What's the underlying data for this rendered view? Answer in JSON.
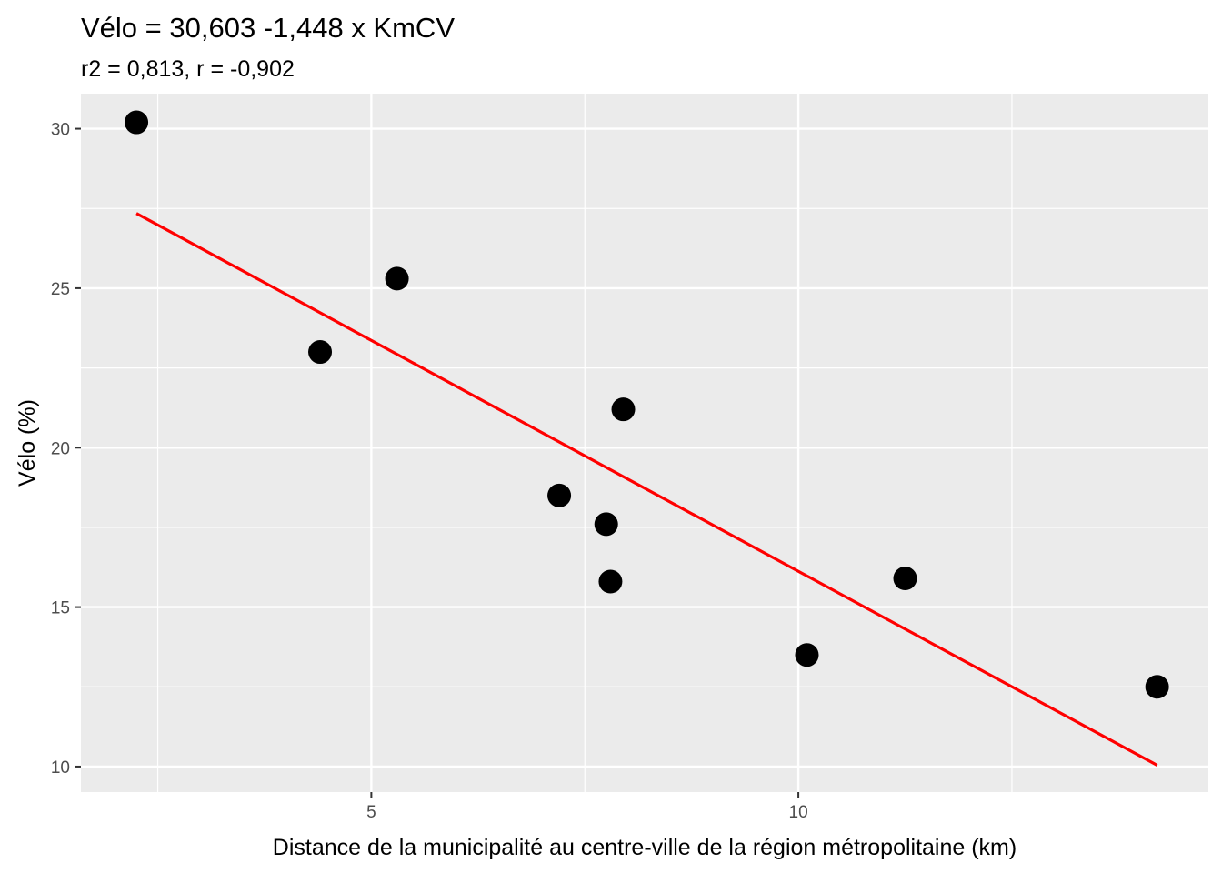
{
  "chart_data": {
    "type": "scatter",
    "title": "Vélo = 30,603 -1,448 x KmCV",
    "subtitle": "r2 = 0,813, r = -0,902",
    "xlabel": "Distance de la municipalité au centre-ville de la région métropolitaine (km)",
    "ylabel": "Vélo (%)",
    "xlim": [
      1.6,
      14.8
    ],
    "ylim": [
      9.2,
      31.1
    ],
    "x_ticks": [
      5,
      10
    ],
    "x_tick_labels": [
      "5",
      "10"
    ],
    "y_ticks": [
      10,
      15,
      20,
      25,
      30
    ],
    "y_tick_labels": [
      "10",
      "15",
      "20",
      "25",
      "30"
    ],
    "grid": true,
    "panel_background": "#ebebeb",
    "point_color": "#000000",
    "line_color": "#ff0000",
    "points": [
      {
        "x": 2.25,
        "y": 30.2
      },
      {
        "x": 4.4,
        "y": 23.0
      },
      {
        "x": 5.3,
        "y": 25.3
      },
      {
        "x": 7.2,
        "y": 18.5
      },
      {
        "x": 7.75,
        "y": 17.6
      },
      {
        "x": 7.8,
        "y": 15.8
      },
      {
        "x": 7.95,
        "y": 21.2
      },
      {
        "x": 10.1,
        "y": 13.5
      },
      {
        "x": 11.25,
        "y": 15.9
      },
      {
        "x": 14.2,
        "y": 12.5
      }
    ],
    "regression": {
      "intercept": 30.603,
      "slope": -1.448,
      "x_start": 2.25,
      "x_end": 14.2
    }
  }
}
